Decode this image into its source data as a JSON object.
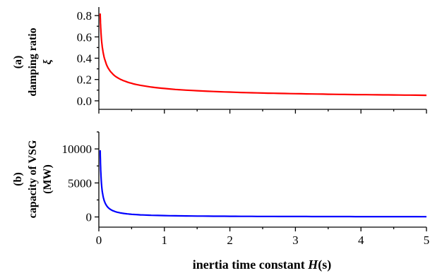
{
  "chart_data": [
    {
      "type": "line",
      "panel_label": "(a)",
      "ylabel_lines": [
        "damping ratio",
        "ξ"
      ],
      "xlim": [
        0,
        5
      ],
      "ylim": [
        -0.08,
        0.88
      ],
      "yticks": [
        0.0,
        0.2,
        0.4,
        0.6,
        0.8
      ],
      "ytick_labels": [
        "0.0",
        "0.2",
        "0.4",
        "0.6",
        "0.8"
      ],
      "grid": false,
      "series": [
        {
          "color": "#ff0000",
          "x": [
            0.02,
            0.03,
            0.05,
            0.07,
            0.1,
            0.15,
            0.2,
            0.3,
            0.4,
            0.5,
            0.7,
            1.0,
            1.5,
            2.0,
            2.5,
            3.0,
            3.5,
            4.0,
            4.5,
            5.0
          ],
          "y": [
            0.82,
            0.67,
            0.52,
            0.44,
            0.37,
            0.3,
            0.26,
            0.212,
            0.184,
            0.164,
            0.139,
            0.116,
            0.095,
            0.082,
            0.073,
            0.067,
            0.062,
            0.058,
            0.055,
            0.052
          ]
        }
      ]
    },
    {
      "type": "line",
      "panel_label": "(b)",
      "ylabel_lines": [
        "capacity of VSG",
        "(MW)"
      ],
      "xlabel_main": "inertia time constant ",
      "xlabel_italic": "H",
      "xlabel_tail": "(s)",
      "xlim": [
        0,
        5
      ],
      "xticks": [
        0,
        1,
        2,
        3,
        4,
        5
      ],
      "xtick_labels": [
        "0",
        "1",
        "2",
        "3",
        "4",
        "5"
      ],
      "ylim": [
        -1500,
        12500
      ],
      "yticks": [
        0,
        5000,
        10000
      ],
      "ytick_labels": [
        "0",
        "5000",
        "10000"
      ],
      "grid": false,
      "series": [
        {
          "color": "#0000ff",
          "x": [
            0.02,
            0.03,
            0.05,
            0.07,
            0.1,
            0.15,
            0.2,
            0.3,
            0.4,
            0.5,
            0.7,
            1.0,
            1.5,
            2.0,
            2.5,
            3.0,
            3.5,
            4.0,
            4.5,
            5.0
          ],
          "y": [
            9800,
            6533,
            3920,
            2800,
            1960,
            1307,
            980,
            653,
            490,
            392,
            280,
            196,
            131,
            98,
            78,
            65,
            56,
            49,
            44,
            39
          ]
        }
      ]
    }
  ]
}
